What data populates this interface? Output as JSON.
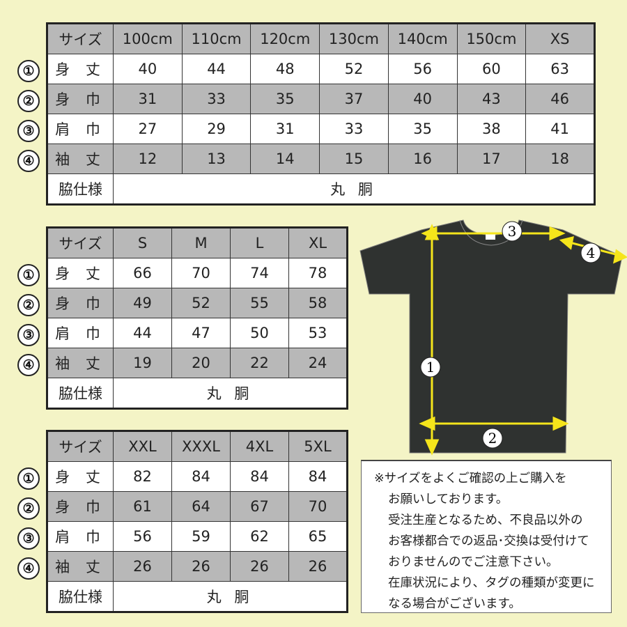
{
  "labels": {
    "size": "サイズ",
    "length": "身 丈",
    "width": "身 巾",
    "shoulder": "肩 巾",
    "sleeve": "袖 丈",
    "side": "脇仕様",
    "side_value": "丸 胴"
  },
  "markers": [
    "①",
    "②",
    "③",
    "④"
  ],
  "tables": [
    {
      "sizes": [
        "100cm",
        "110cm",
        "120cm",
        "130cm",
        "140cm",
        "150cm",
        "XS"
      ],
      "rows": [
        [
          "40",
          "44",
          "48",
          "52",
          "56",
          "60",
          "63"
        ],
        [
          "31",
          "33",
          "35",
          "37",
          "40",
          "43",
          "46"
        ],
        [
          "27",
          "29",
          "31",
          "33",
          "35",
          "38",
          "41"
        ],
        [
          "12",
          "13",
          "14",
          "15",
          "16",
          "17",
          "18"
        ]
      ]
    },
    {
      "sizes": [
        "S",
        "M",
        "L",
        "XL"
      ],
      "rows": [
        [
          "66",
          "70",
          "74",
          "78"
        ],
        [
          "49",
          "52",
          "55",
          "58"
        ],
        [
          "44",
          "47",
          "50",
          "53"
        ],
        [
          "19",
          "20",
          "22",
          "24"
        ]
      ]
    },
    {
      "sizes": [
        "XXL",
        "XXXL",
        "4XL",
        "5XL"
      ],
      "rows": [
        [
          "82",
          "84",
          "84",
          "84"
        ],
        [
          "61",
          "64",
          "67",
          "70"
        ],
        [
          "56",
          "59",
          "62",
          "65"
        ],
        [
          "26",
          "26",
          "26",
          "26"
        ]
      ]
    }
  ],
  "diagram": {
    "markers": [
      "1",
      "2",
      "3",
      "4"
    ]
  },
  "note": [
    "※サイズをよくご確認の上ご購入を",
    "お願いしております。",
    "受注生産となるため、不良品以外の",
    "お客様都合での返品･交換は受付けて",
    "おりませんのでご注意下さい。",
    "在庫状況により、タグの種類が変更に",
    "なる場合がございます。"
  ],
  "colors": {
    "background": "#f4f4c6",
    "gray_row": "#b8b8b8",
    "shirt": "#2f3230",
    "arrow": "#f5e51b"
  }
}
